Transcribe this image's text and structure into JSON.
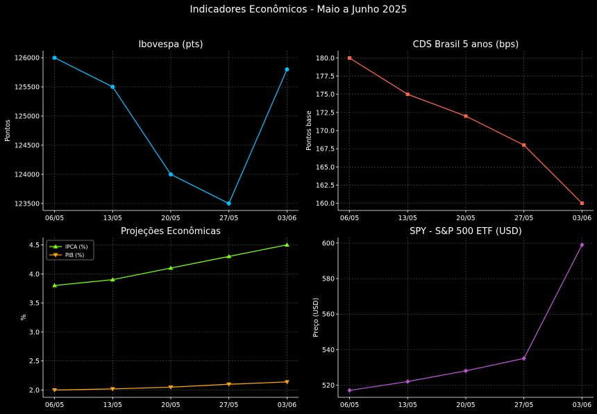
{
  "title": "Indicadores Econômicos - Maio a Junho 2025",
  "chart_data": [
    {
      "type": "line",
      "title": "Ibovespa (pts)",
      "xlabel": "",
      "ylabel": "Pontos",
      "categories": [
        "06/05",
        "13/05",
        "20/05",
        "27/05",
        "03/06"
      ],
      "series": [
        {
          "name": "Ibovespa",
          "values": [
            126000,
            125500,
            124000,
            123500,
            125800
          ],
          "color": "#00bfff",
          "marker": "circle"
        }
      ],
      "yticks": [
        "123500",
        "124000",
        "124500",
        "125000",
        "125500",
        "126000"
      ],
      "ytick_values": [
        123500,
        124000,
        124500,
        125000,
        125500,
        126000
      ],
      "ylim": [
        123380,
        126120
      ],
      "grid": true
    },
    {
      "type": "line",
      "title": "CDS Brasil 5 anos (bps)",
      "xlabel": "",
      "ylabel": "Pontos base",
      "categories": [
        "06/05",
        "13/05",
        "20/05",
        "27/05",
        "03/06"
      ],
      "series": [
        {
          "name": "CDS",
          "values": [
            180,
            175,
            172,
            168,
            160
          ],
          "color": "#ff6347",
          "marker": "square"
        }
      ],
      "yticks": [
        "160.0",
        "162.5",
        "165.0",
        "167.5",
        "170.0",
        "172.5",
        "175.0",
        "177.5",
        "180.0"
      ],
      "ytick_values": [
        160,
        162.5,
        165,
        167.5,
        170,
        172.5,
        175,
        177.5,
        180
      ],
      "ylim": [
        159.0,
        181.0
      ],
      "grid": true
    },
    {
      "type": "line",
      "title": "Projeções Econômicas",
      "xlabel": "",
      "ylabel": "%",
      "categories": [
        "06/05",
        "13/05",
        "20/05",
        "27/05",
        "03/06"
      ],
      "series": [
        {
          "name": "IPCA (%)",
          "values": [
            3.8,
            3.9,
            4.1,
            4.3,
            4.5
          ],
          "color": "#7cfc00",
          "marker": "triangle-up"
        },
        {
          "name": "PIB (%)",
          "values": [
            2.0,
            2.02,
            2.05,
            2.1,
            2.14
          ],
          "color": "#ffa500",
          "marker": "triangle-down"
        }
      ],
      "yticks": [
        "2.0",
        "2.5",
        "3.0",
        "3.5",
        "4.0",
        "4.5"
      ],
      "ytick_values": [
        2.0,
        2.5,
        3.0,
        3.5,
        4.0,
        4.5
      ],
      "ylim": [
        1.875,
        4.625
      ],
      "legend": "top-left",
      "grid": true
    },
    {
      "type": "line",
      "title": "SPY - S&P 500 ETF (USD)",
      "xlabel": "",
      "ylabel": "Preço (USD)",
      "categories": [
        "06/05",
        "13/05",
        "20/05",
        "27/05",
        "03/06"
      ],
      "series": [
        {
          "name": "SPY",
          "values": [
            517,
            522,
            528,
            535,
            599
          ],
          "color": "#ba55d3",
          "marker": "diamond"
        }
      ],
      "yticks": [
        "520",
        "540",
        "560",
        "580",
        "600"
      ],
      "ytick_values": [
        520,
        540,
        560,
        580,
        600
      ],
      "ylim": [
        513.1,
        603.1
      ],
      "grid": true
    }
  ]
}
